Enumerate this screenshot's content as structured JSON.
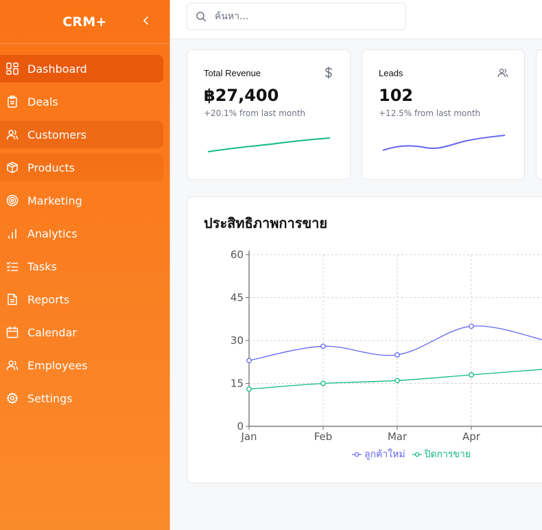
{
  "app": {
    "title": "CRM+"
  },
  "search": {
    "placeholder": "ค้นหา..."
  },
  "sidebar": {
    "items": [
      {
        "label": "Dashboard",
        "icon": "dashboard-icon"
      },
      {
        "label": "Deals",
        "icon": "clipboard-icon"
      },
      {
        "label": "Customers",
        "icon": "users-icon"
      },
      {
        "label": "Products",
        "icon": "package-icon"
      },
      {
        "label": "Marketing",
        "icon": "target-icon"
      },
      {
        "label": "Analytics",
        "icon": "bar-chart-icon"
      },
      {
        "label": "Tasks",
        "icon": "checklist-icon"
      },
      {
        "label": "Reports",
        "icon": "file-text-icon"
      },
      {
        "label": "Calendar",
        "icon": "calendar-icon"
      },
      {
        "label": "Employees",
        "icon": "users-icon"
      },
      {
        "label": "Settings",
        "icon": "gear-icon"
      }
    ]
  },
  "stats": [
    {
      "title": "Total Revenue",
      "value": "฿27,400",
      "change": "+20.1% from last month",
      "icon": "dollar-icon",
      "color": "#10b981"
    },
    {
      "title": "Leads",
      "value": "102",
      "change": "+12.5% from last month",
      "icon": "users-icon",
      "color": "#6366f1"
    }
  ],
  "colors": {
    "accent": "#f97316",
    "active": "#e8590c",
    "series_new": "#6366f1",
    "series_closed": "#10b981"
  },
  "chart_data": {
    "type": "line",
    "title": "ประสิทธิภาพการขาย",
    "categories": [
      "Jan",
      "Feb",
      "Mar",
      "Apr",
      "May"
    ],
    "category_ticks": [
      "Jan",
      "Feb",
      "Mar",
      "Apr",
      "M"
    ],
    "series": [
      {
        "name": "ลูกค้าใหม่",
        "values": [
          23,
          28,
          25,
          35,
          30
        ],
        "color": "#6366f1"
      },
      {
        "name": "ปิดการขาย",
        "values": [
          13,
          15,
          16,
          18,
          20
        ],
        "color": "#10b981"
      }
    ],
    "ylim": [
      0,
      60
    ],
    "yticks": [
      0,
      15,
      30,
      45,
      60
    ],
    "grid": true,
    "legend": "bottom"
  }
}
